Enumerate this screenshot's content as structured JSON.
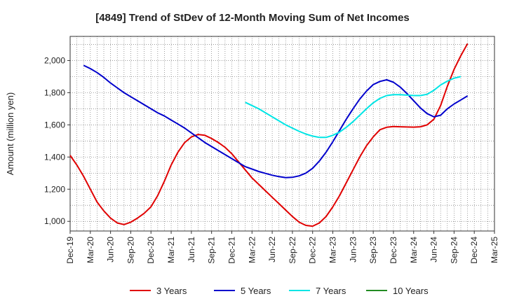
{
  "chart_data": {
    "type": "line",
    "title": "[4849]  Trend of StDev of 12-Month Moving Sum of Net Incomes",
    "ylabel": "Amount (million yen)",
    "xlabel": "",
    "ylim": [
      940,
      2150
    ],
    "y_ticks": [
      1000,
      1200,
      1400,
      1600,
      1800,
      2000
    ],
    "y_tick_labels": [
      "1,000",
      "1,200",
      "1,400",
      "1,600",
      "1,800",
      "2,000"
    ],
    "x_tick_labels": [
      "Dec-19",
      "Mar-20",
      "Jun-20",
      "Sep-20",
      "Dec-20",
      "Mar-21",
      "Jun-21",
      "Sep-21",
      "Dec-21",
      "Mar-22",
      "Jun-22",
      "Sep-22",
      "Dec-22",
      "Mar-23",
      "Jun-23",
      "Sep-23",
      "Dec-23",
      "Mar-24",
      "Jun-24",
      "Sep-24",
      "Dec-24",
      "Mar-25"
    ],
    "x_start": "2019-12",
    "grid": true,
    "legend_position": "bottom",
    "series": [
      {
        "name": "3 Years",
        "color": "#e00000",
        "start": "2019-12",
        "values": [
          1410,
          1350,
          1280,
          1200,
          1120,
          1065,
          1020,
          990,
          980,
          995,
          1020,
          1050,
          1090,
          1160,
          1250,
          1350,
          1430,
          1490,
          1525,
          1540,
          1535,
          1515,
          1490,
          1460,
          1420,
          1370,
          1320,
          1270,
          1230,
          1190,
          1150,
          1110,
          1070,
          1030,
          995,
          975,
          970,
          990,
          1030,
          1090,
          1160,
          1240,
          1320,
          1400,
          1470,
          1525,
          1570,
          1585,
          1590,
          1588,
          1587,
          1586,
          1588,
          1600,
          1635,
          1720,
          1840,
          1945,
          2030,
          2105
        ]
      },
      {
        "name": "5 Years",
        "color": "#0000cc",
        "start": "2020-02",
        "values": [
          1970,
          1950,
          1925,
          1895,
          1860,
          1830,
          1800,
          1775,
          1750,
          1725,
          1700,
          1675,
          1655,
          1630,
          1605,
          1580,
          1550,
          1520,
          1490,
          1465,
          1440,
          1415,
          1390,
          1365,
          1340,
          1325,
          1310,
          1298,
          1287,
          1278,
          1272,
          1274,
          1283,
          1300,
          1330,
          1375,
          1430,
          1495,
          1565,
          1635,
          1700,
          1760,
          1810,
          1850,
          1870,
          1880,
          1865,
          1835,
          1795,
          1750,
          1705,
          1670,
          1650,
          1660,
          1700,
          1730,
          1755,
          1780
        ]
      },
      {
        "name": "7 Years",
        "color": "#00e5e5",
        "start": "2022-02",
        "values": [
          1740,
          1720,
          1700,
          1675,
          1650,
          1625,
          1600,
          1580,
          1560,
          1543,
          1530,
          1522,
          1522,
          1535,
          1555,
          1585,
          1620,
          1660,
          1700,
          1737,
          1765,
          1782,
          1788,
          1788,
          1785,
          1782,
          1782,
          1790,
          1815,
          1848,
          1872,
          1890,
          1900
        ]
      },
      {
        "name": "10 Years",
        "color": "#228b22",
        "start": "2019-12",
        "values": []
      }
    ]
  }
}
